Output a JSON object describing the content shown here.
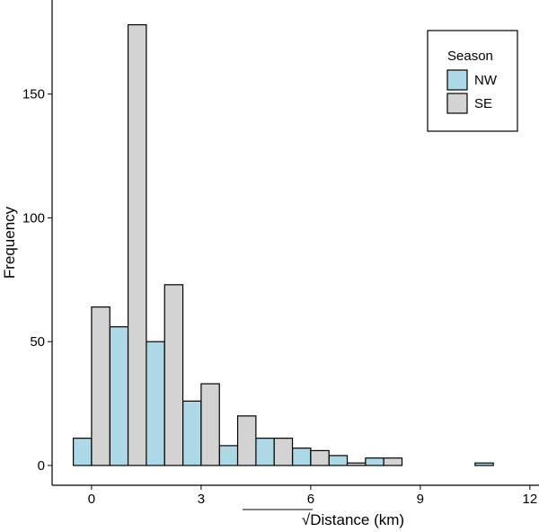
{
  "chart_data": {
    "type": "histogram",
    "x_label": "√Distance (km)",
    "y_label": "Frequency",
    "bins": [
      -0.5,
      0.5,
      1.5,
      2.5,
      3.5,
      4.5,
      5.5,
      6.5,
      7.5,
      8.5,
      9.5,
      10.5,
      11.5
    ],
    "series": [
      {
        "name": "NW",
        "color": "#add8e6",
        "values": [
          11,
          56,
          50,
          26,
          8,
          11,
          7,
          4,
          3,
          0,
          0,
          1
        ]
      },
      {
        "name": "SE",
        "color": "#d3d3d3",
        "values": [
          64,
          178,
          73,
          33,
          20,
          11,
          6,
          1,
          3,
          0,
          0,
          0
        ]
      }
    ],
    "legend_title": "Season",
    "legend_position": "top-right",
    "xlim": [
      -1.08,
      12.25
    ],
    "ylim": [
      -8,
      188
    ],
    "xticks": [
      0,
      3,
      6,
      9,
      12
    ],
    "yticks": [
      0,
      50,
      100,
      150
    ],
    "grid": false
  }
}
